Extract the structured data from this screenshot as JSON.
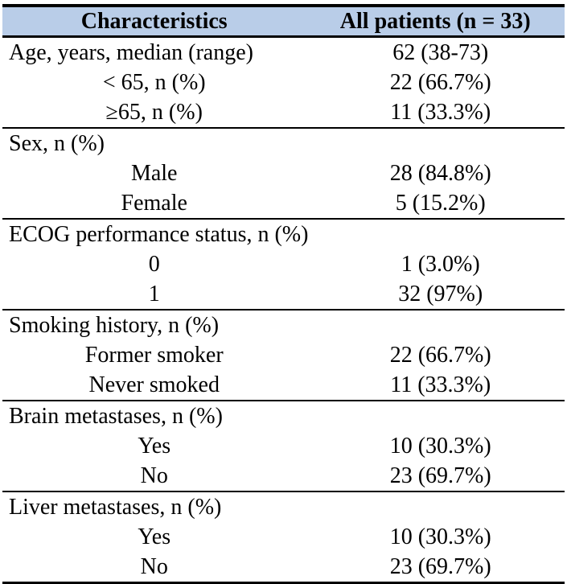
{
  "colors": {
    "header_bg": "#b9cde8",
    "border": "#000000",
    "text": "#000000",
    "page_bg": "#ffffff"
  },
  "table": {
    "header": {
      "characteristics": "Characteristics",
      "all_patients": "All patients (n = 33)"
    },
    "rows": [
      {
        "label": "Age, years, median (range)",
        "value": "62 (38-73)"
      },
      {
        "label": "< 65, n (%)",
        "value": "22 (66.7%)"
      },
      {
        "label": "≥65, n (%)",
        "value": "11 (33.3%)"
      },
      {
        "label": "Sex, n (%)",
        "value": ""
      },
      {
        "label": "Male",
        "value": "28 (84.8%)"
      },
      {
        "label": "Female",
        "value": "5 (15.2%)"
      },
      {
        "label": "ECOG performance status, n (%)",
        "value": ""
      },
      {
        "label": "0",
        "value": "1 (3.0%)"
      },
      {
        "label": "1",
        "value": "32 (97%)"
      },
      {
        "label": "Smoking history, n (%)",
        "value": ""
      },
      {
        "label": "Former smoker",
        "value": "22 (66.7%)"
      },
      {
        "label": "Never smoked",
        "value": "11 (33.3%)"
      },
      {
        "label": "Brain metastases, n (%)",
        "value": ""
      },
      {
        "label": "Yes",
        "value": "10 (30.3%)"
      },
      {
        "label": "No",
        "value": "23 (69.7%)"
      },
      {
        "label": "Liver metastases, n (%)",
        "value": ""
      },
      {
        "label": "Yes",
        "value": "10 (30.3%)"
      },
      {
        "label": "No",
        "value": "23 (69.7%)"
      }
    ]
  }
}
